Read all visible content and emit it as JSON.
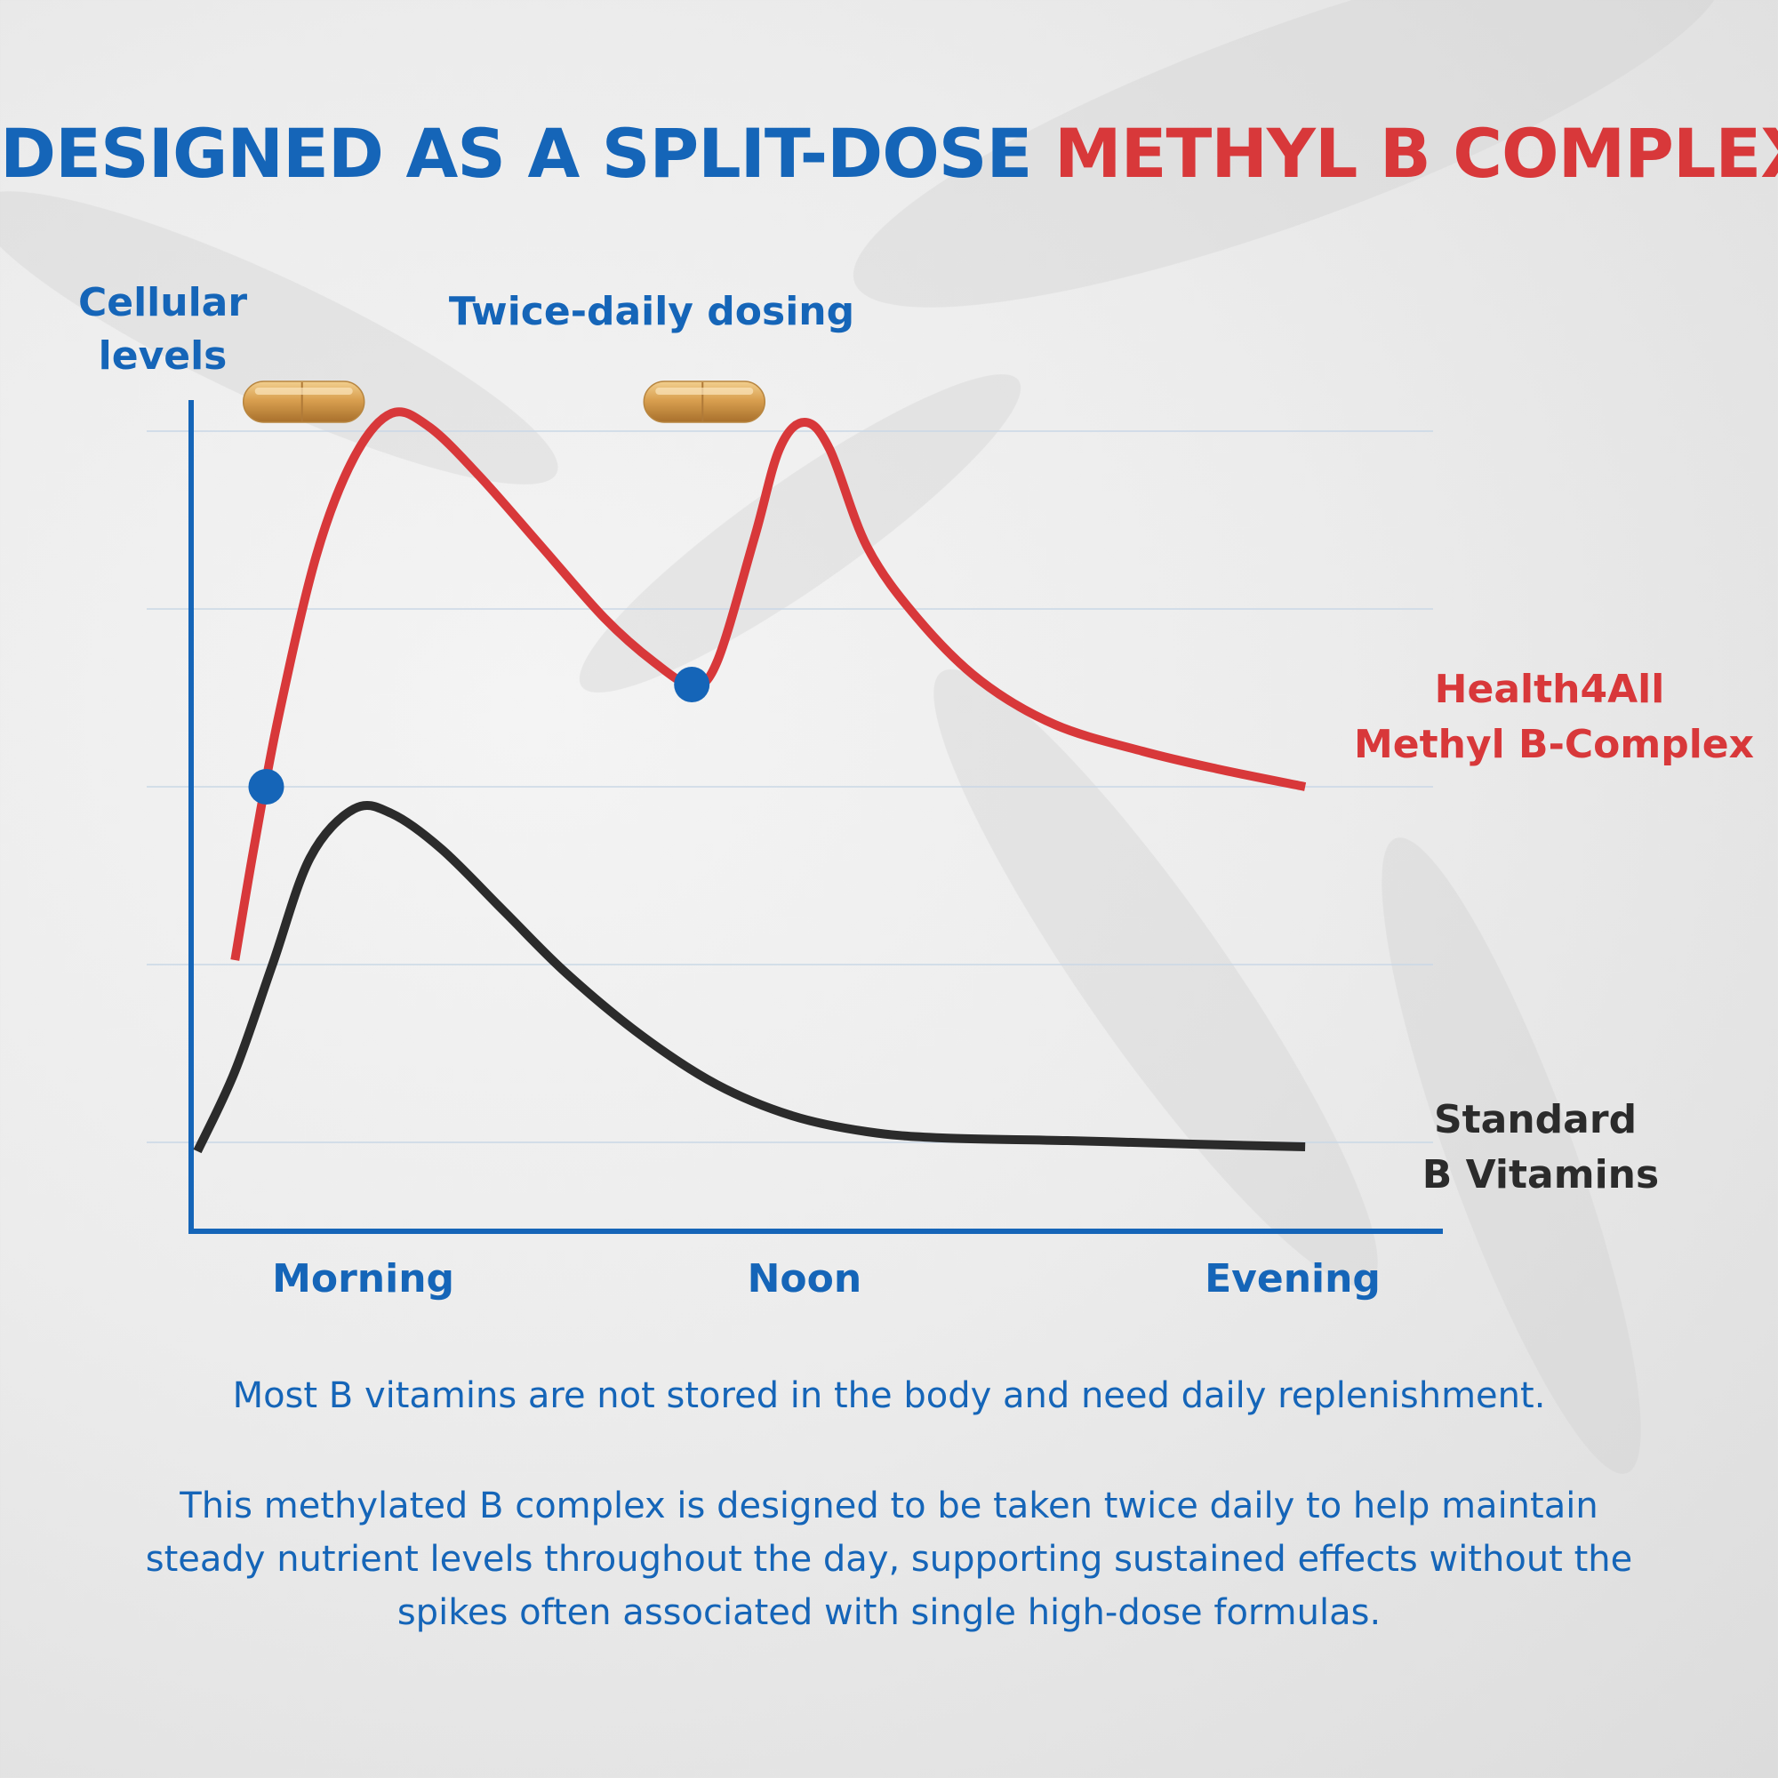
{
  "headline": {
    "part_blue": "DESIGNED AS A SPLIT-DOSE",
    "part_red": "METHYL B COMPLEX"
  },
  "colors": {
    "brand_blue": "#1565b8",
    "accent_red": "#d8383a",
    "standard_black": "#2b2b2b",
    "gridline": "#c9d7e6",
    "capsule": "#d9a050"
  },
  "chart_data": {
    "type": "line",
    "title": "DESIGNED AS A SPLIT-DOSE METHYL B COMPLEX",
    "ylabel_lines": [
      "Cellular",
      "levels"
    ],
    "xlabel": "",
    "annotation": "Twice-daily dosing",
    "x_range": [
      0,
      10
    ],
    "ylim": [
      0,
      10
    ],
    "y_ticks": [
      1,
      3,
      5,
      7,
      9
    ],
    "grid": true,
    "y_tick_labels_shown": false,
    "x_ticks": [
      {
        "x": 0.7,
        "label": "Morning"
      },
      {
        "x": 4.9,
        "label": "Noon"
      },
      {
        "x": 8.8,
        "label": "Evening"
      }
    ],
    "dose_times": [
      0.9,
      4.1
    ],
    "dose_markers": [
      {
        "x": 0.6,
        "y": 5.0
      },
      {
        "x": 4.0,
        "y": 6.15
      }
    ],
    "series": [
      {
        "name": "Health4All Methyl B-Complex",
        "label_lines": [
          "Health4All",
          "Methyl B-Complex"
        ],
        "color": "#d8383a",
        "points": [
          [
            0.35,
            3.05
          ],
          [
            0.5,
            4.3
          ],
          [
            0.7,
            5.8
          ],
          [
            1.0,
            7.6
          ],
          [
            1.3,
            8.7
          ],
          [
            1.6,
            9.2
          ],
          [
            1.9,
            9.05
          ],
          [
            2.3,
            8.5
          ],
          [
            2.8,
            7.7
          ],
          [
            3.3,
            6.9
          ],
          [
            3.7,
            6.4
          ],
          [
            4.0,
            6.15
          ],
          [
            4.2,
            6.4
          ],
          [
            4.5,
            7.8
          ],
          [
            4.7,
            8.8
          ],
          [
            4.9,
            9.1
          ],
          [
            5.1,
            8.8
          ],
          [
            5.4,
            7.7
          ],
          [
            5.8,
            6.9
          ],
          [
            6.3,
            6.2
          ],
          [
            6.9,
            5.7
          ],
          [
            7.6,
            5.4
          ],
          [
            8.2,
            5.2
          ],
          [
            8.9,
            5.0
          ]
        ]
      },
      {
        "name": "Standard B Vitamins",
        "label_lines": [
          "Standard",
          "B Vitamins"
        ],
        "color": "#2b2b2b",
        "points": [
          [
            0.05,
            0.9
          ],
          [
            0.35,
            1.8
          ],
          [
            0.65,
            3.0
          ],
          [
            0.95,
            4.2
          ],
          [
            1.3,
            4.75
          ],
          [
            1.6,
            4.7
          ],
          [
            2.0,
            4.3
          ],
          [
            2.5,
            3.6
          ],
          [
            3.0,
            2.9
          ],
          [
            3.6,
            2.2
          ],
          [
            4.2,
            1.65
          ],
          [
            4.8,
            1.3
          ],
          [
            5.4,
            1.12
          ],
          [
            6.0,
            1.05
          ],
          [
            7.0,
            1.02
          ],
          [
            8.0,
            0.98
          ],
          [
            8.9,
            0.95
          ]
        ]
      }
    ]
  },
  "captions": {
    "line1": "Most B vitamins are not stored in the body and need daily replenishment.",
    "line2": "This methylated B complex is designed to be taken twice daily to help maintain steady nutrient levels throughout the day, supporting sustained effects without the spikes often associated with single high-dose formulas."
  }
}
